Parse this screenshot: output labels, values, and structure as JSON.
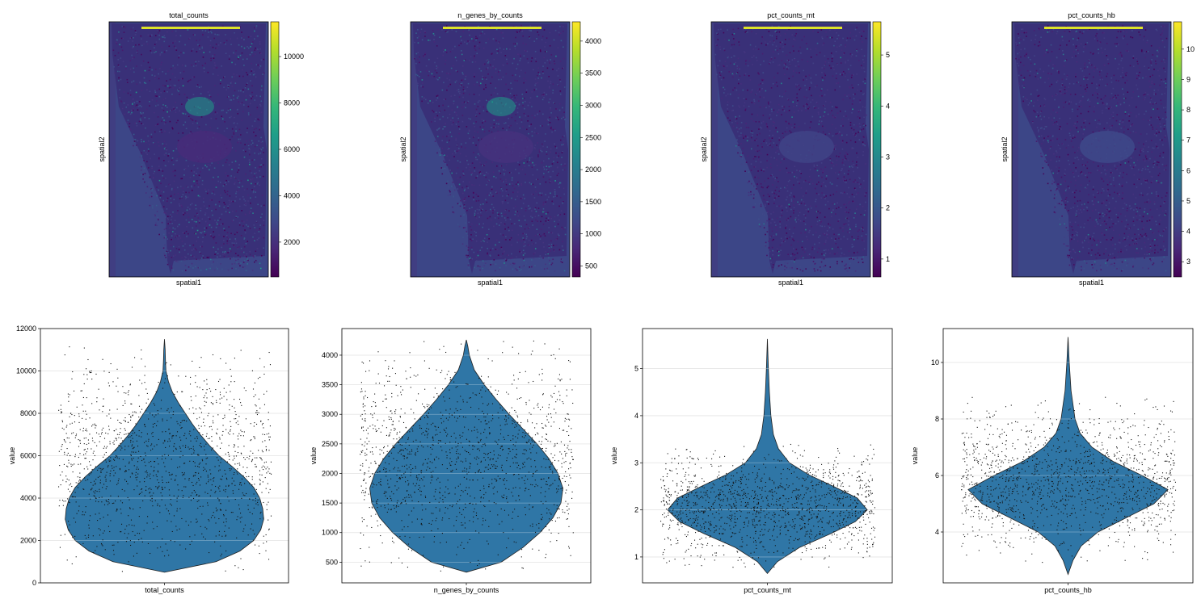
{
  "chart_data": [
    {
      "type": "heatmap",
      "kind": "spatial-scatter",
      "title": "total_counts",
      "xlabel": "spatial1",
      "ylabel": "spatial2",
      "colormap": "viridis",
      "colorbar": {
        "ticks": [
          2000,
          4000,
          6000,
          8000,
          10000
        ],
        "range": [
          500,
          11500
        ]
      },
      "features": [
        {
          "kind": "dark-zone",
          "level": 0.12
        },
        {
          "kind": "hot-cluster",
          "level": 0.55
        }
      ]
    },
    {
      "type": "heatmap",
      "kind": "spatial-scatter",
      "title": "n_genes_by_counts",
      "xlabel": "spatial1",
      "ylabel": "spatial2",
      "colormap": "viridis",
      "colorbar": {
        "ticks": [
          500,
          1000,
          1500,
          2000,
          2500,
          3000,
          3500,
          4000
        ],
        "range": [
          330,
          4300
        ]
      },
      "features": [
        {
          "kind": "dark-zone",
          "level": 0.14
        },
        {
          "kind": "hot-cluster",
          "level": 0.55
        }
      ]
    },
    {
      "type": "heatmap",
      "kind": "spatial-scatter",
      "title": "pct_counts_mt",
      "xlabel": "spatial1",
      "ylabel": "spatial2",
      "colormap": "viridis",
      "colorbar": {
        "ticks": [
          1,
          2,
          3,
          4,
          5
        ],
        "range": [
          0.65,
          5.65
        ]
      },
      "features": [
        {
          "kind": "dark-zone",
          "level": 0.2
        }
      ]
    },
    {
      "type": "heatmap",
      "kind": "spatial-scatter",
      "title": "pct_counts_hb",
      "xlabel": "spatial1",
      "ylabel": "spatial2",
      "colormap": "viridis",
      "colorbar": {
        "ticks": [
          3,
          4,
          5,
          6,
          7,
          8,
          9,
          10
        ],
        "range": [
          2.5,
          10.9
        ]
      },
      "features": [
        {
          "kind": "dark-zone",
          "level": 0.22
        }
      ]
    },
    {
      "type": "violin",
      "xlabel": "total_counts",
      "ylabel": "value",
      "categories": [
        "total_counts"
      ],
      "ylim": [
        0,
        12000
      ],
      "yticks": [
        0,
        2000,
        4000,
        6000,
        8000,
        10000,
        12000
      ],
      "grid": true,
      "color": "#2f76a6",
      "jitter_points": true,
      "density": [
        [
          500,
          0
        ],
        [
          1000,
          0.52
        ],
        [
          1500,
          0.76
        ],
        [
          2000,
          0.9
        ],
        [
          2500,
          0.97
        ],
        [
          3000,
          1.0
        ],
        [
          3500,
          0.99
        ],
        [
          4000,
          0.96
        ],
        [
          4500,
          0.9
        ],
        [
          5000,
          0.8
        ],
        [
          5500,
          0.68
        ],
        [
          6000,
          0.55
        ],
        [
          6500,
          0.45
        ],
        [
          7000,
          0.36
        ],
        [
          7500,
          0.28
        ],
        [
          8000,
          0.21
        ],
        [
          8500,
          0.14
        ],
        [
          9000,
          0.08
        ],
        [
          9500,
          0.04
        ],
        [
          10000,
          0.015
        ],
        [
          10500,
          0.01
        ],
        [
          11000,
          0.007
        ],
        [
          11500,
          0
        ]
      ],
      "point_range": [
        400,
        11200
      ]
    },
    {
      "type": "violin",
      "xlabel": "n_genes_by_counts",
      "ylabel": "value",
      "categories": [
        "n_genes_by_counts"
      ],
      "ylim": [
        150,
        4450
      ],
      "yticks": [
        500,
        1000,
        1500,
        2000,
        2500,
        3000,
        3500,
        4000
      ],
      "grid": true,
      "color": "#2f76a6",
      "jitter_points": true,
      "density": [
        [
          330,
          0
        ],
        [
          500,
          0.35
        ],
        [
          750,
          0.57
        ],
        [
          1000,
          0.74
        ],
        [
          1250,
          0.87
        ],
        [
          1500,
          0.95
        ],
        [
          1750,
          0.97
        ],
        [
          2000,
          0.92
        ],
        [
          2250,
          0.83
        ],
        [
          2500,
          0.71
        ],
        [
          2750,
          0.57
        ],
        [
          3000,
          0.43
        ],
        [
          3250,
          0.3
        ],
        [
          3500,
          0.18
        ],
        [
          3750,
          0.08
        ],
        [
          4000,
          0.03
        ],
        [
          4150,
          0.015
        ],
        [
          4260,
          0
        ]
      ],
      "point_range": [
        330,
        4250
      ]
    },
    {
      "type": "violin",
      "xlabel": "pct_counts_mt",
      "ylabel": "value",
      "categories": [
        "pct_counts_mt"
      ],
      "ylim": [
        0.45,
        5.85
      ],
      "yticks": [
        1,
        2,
        3,
        4,
        5
      ],
      "grid": true,
      "color": "#2f76a6",
      "jitter_points": true,
      "density": [
        [
          0.65,
          0
        ],
        [
          0.9,
          0.1
        ],
        [
          1.2,
          0.32
        ],
        [
          1.5,
          0.64
        ],
        [
          1.75,
          0.88
        ],
        [
          2.0,
          1.0
        ],
        [
          2.25,
          0.9
        ],
        [
          2.5,
          0.66
        ],
        [
          2.75,
          0.41
        ],
        [
          3.0,
          0.22
        ],
        [
          3.3,
          0.11
        ],
        [
          3.6,
          0.06
        ],
        [
          4.0,
          0.035
        ],
        [
          4.5,
          0.02
        ],
        [
          5.0,
          0.01
        ],
        [
          5.63,
          0
        ]
      ],
      "point_range": [
        0.75,
        3.4
      ]
    },
    {
      "type": "violin",
      "xlabel": "pct_counts_hb",
      "ylabel": "value",
      "categories": [
        "pct_counts_hb"
      ],
      "ylim": [
        2.2,
        11.2
      ],
      "yticks": [
        4,
        6,
        8,
        10
      ],
      "grid": true,
      "color": "#2f76a6",
      "jitter_points": true,
      "density": [
        [
          2.5,
          0
        ],
        [
          3.0,
          0.05
        ],
        [
          3.5,
          0.13
        ],
        [
          4.0,
          0.3
        ],
        [
          4.5,
          0.58
        ],
        [
          5.0,
          0.86
        ],
        [
          5.5,
          1.0
        ],
        [
          6.0,
          0.74
        ],
        [
          6.5,
          0.45
        ],
        [
          7.0,
          0.24
        ],
        [
          7.5,
          0.12
        ],
        [
          8.0,
          0.07
        ],
        [
          8.5,
          0.05
        ],
        [
          9.0,
          0.03
        ],
        [
          10.0,
          0.012
        ],
        [
          10.9,
          0
        ]
      ],
      "point_range": [
        2.9,
        8.8
      ]
    }
  ]
}
